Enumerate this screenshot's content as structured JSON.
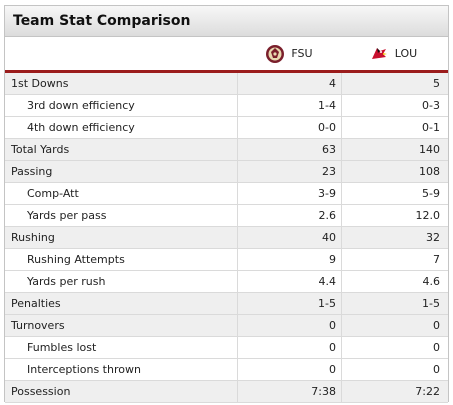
{
  "panel": {
    "title": "Team Stat Comparison"
  },
  "teams": {
    "home": {
      "abbr": "FSU",
      "logo_icon": "fsu-seminole-logo-icon"
    },
    "away": {
      "abbr": "LOU",
      "logo_icon": "louisville-cardinal-logo-icon"
    }
  },
  "rows": [
    {
      "label": "1st Downs",
      "fsu": "4",
      "lou": "5",
      "level": "main"
    },
    {
      "label": "3rd down efficiency",
      "fsu": "1-4",
      "lou": "0-3",
      "level": "sub"
    },
    {
      "label": "4th down efficiency",
      "fsu": "0-0",
      "lou": "0-1",
      "level": "sub"
    },
    {
      "label": "Total Yards",
      "fsu": "63",
      "lou": "140",
      "level": "main"
    },
    {
      "label": "Passing",
      "fsu": "23",
      "lou": "108",
      "level": "main"
    },
    {
      "label": "Comp-Att",
      "fsu": "3-9",
      "lou": "5-9",
      "level": "sub"
    },
    {
      "label": "Yards per pass",
      "fsu": "2.6",
      "lou": "12.0",
      "level": "sub"
    },
    {
      "label": "Rushing",
      "fsu": "40",
      "lou": "32",
      "level": "main"
    },
    {
      "label": "Rushing Attempts",
      "fsu": "9",
      "lou": "7",
      "level": "sub"
    },
    {
      "label": "Yards per rush",
      "fsu": "4.4",
      "lou": "4.6",
      "level": "sub"
    },
    {
      "label": "Penalties",
      "fsu": "1-5",
      "lou": "1-5",
      "level": "main"
    },
    {
      "label": "Turnovers",
      "fsu": "0",
      "lou": "0",
      "level": "main"
    },
    {
      "label": "Fumbles lost",
      "fsu": "0",
      "lou": "0",
      "level": "sub"
    },
    {
      "label": "Interceptions thrown",
      "fsu": "0",
      "lou": "0",
      "level": "sub"
    },
    {
      "label": "Possession",
      "fsu": "7:38",
      "lou": "7:22",
      "level": "main"
    }
  ],
  "colors": {
    "accent": "#9b1c1c",
    "main_row_bg": "#efefef",
    "border": "#c4c4c4"
  }
}
